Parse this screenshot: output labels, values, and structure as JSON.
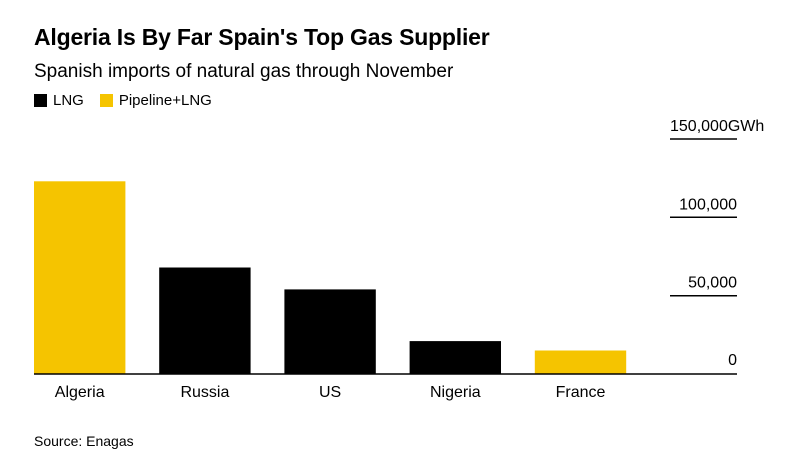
{
  "title": "Algeria Is By Far Spain's Top Gas Supplier",
  "subtitle": "Spanish imports of natural gas through November",
  "source": "Source: Enagas",
  "legend": [
    {
      "label": "LNG",
      "color": "#000000"
    },
    {
      "label": "Pipeline+LNG",
      "color": "#f5c400"
    }
  ],
  "chart_data": {
    "type": "bar",
    "title": "Algeria Is By Far Spain's Top Gas Supplier",
    "subtitle": "Spanish imports of natural gas through November",
    "unit": "GWh",
    "categories": [
      "Algeria",
      "Russia",
      "US",
      "Nigeria",
      "France"
    ],
    "values": [
      123000,
      68000,
      54000,
      21000,
      15000
    ],
    "series_type": [
      "Pipeline+LNG",
      "LNG",
      "LNG",
      "LNG",
      "Pipeline+LNG"
    ],
    "ylim": [
      0,
      150000
    ],
    "yticks": [
      0,
      50000,
      100000,
      150000
    ],
    "ytick_labels": [
      "0",
      "50,000",
      "100,000",
      "150,000"
    ],
    "y_axis_side": "right",
    "grid": false,
    "legend_position": "top-left"
  }
}
